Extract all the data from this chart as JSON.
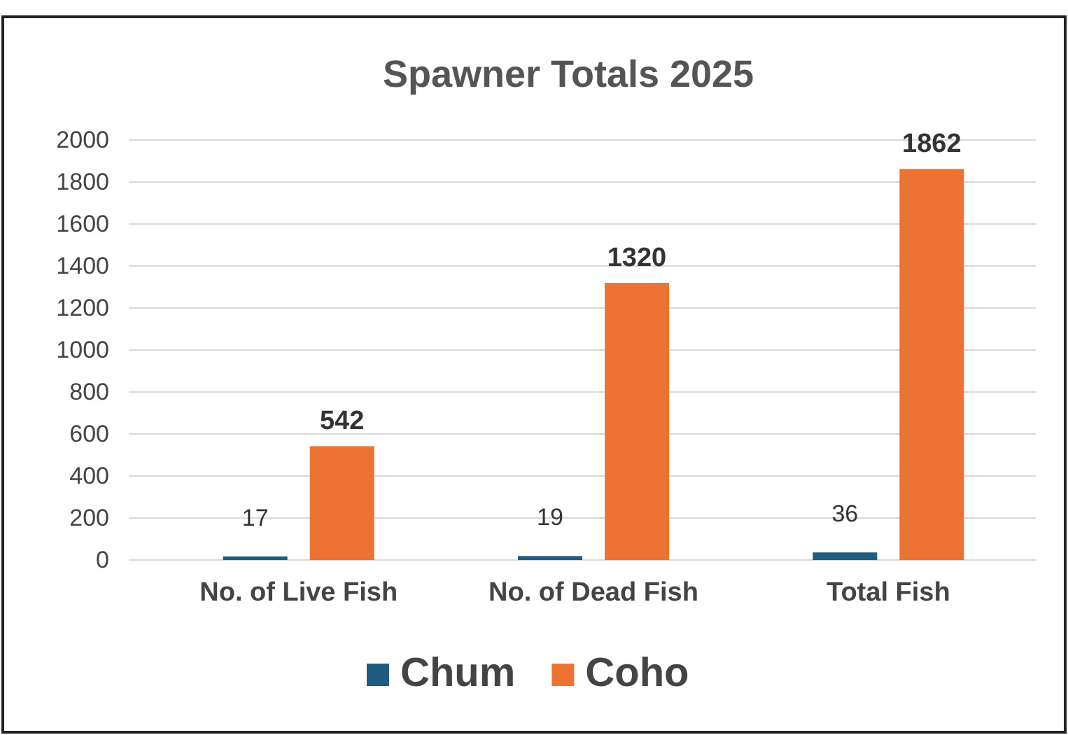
{
  "chart_data": {
    "type": "bar",
    "title": "Spawner Totals 2025",
    "categories": [
      "No. of Live Fish",
      "No. of Dead Fish",
      "Total Fish"
    ],
    "series": [
      {
        "name": "Chum",
        "color": "#1f5c80",
        "values": [
          17,
          19,
          36
        ]
      },
      {
        "name": "Coho",
        "color": "#ec7331",
        "values": [
          542,
          1320,
          1862
        ]
      }
    ],
    "ylim": [
      0,
      2000
    ],
    "yticks": [
      0,
      200,
      400,
      600,
      800,
      1000,
      1200,
      1400,
      1600,
      1800,
      2000
    ],
    "grid": "y",
    "legend": "bottom",
    "data_labels": true
  }
}
